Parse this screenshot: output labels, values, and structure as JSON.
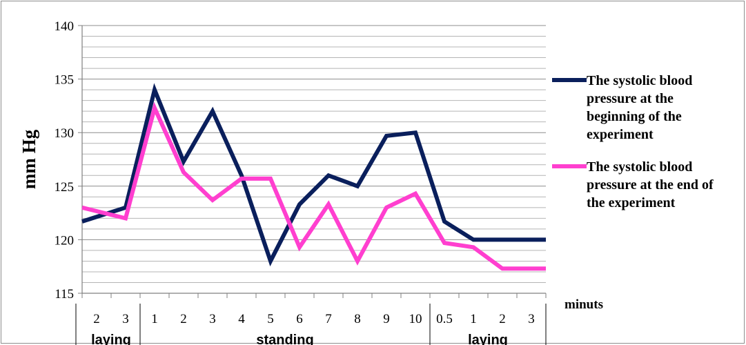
{
  "chart_data": {
    "type": "line",
    "title": "",
    "ylabel": "mm Hg",
    "xlabel": "minuts",
    "ylim": [
      115,
      140
    ],
    "yticks": [
      115,
      120,
      125,
      130,
      135,
      140
    ],
    "grid": "horizontal minor lines every 1 mm Hg",
    "categories": [
      "2",
      "3",
      "1",
      "2",
      "3",
      "4",
      "5",
      "6",
      "7",
      "8",
      "9",
      "10",
      "0.5",
      "1",
      "2",
      "3"
    ],
    "groups": [
      {
        "label": "laying",
        "from": 0,
        "to": 1
      },
      {
        "label": "standing",
        "from": 2,
        "to": 11
      },
      {
        "label": "laying",
        "from": 12,
        "to": 15
      }
    ],
    "legend_position": "right",
    "series": [
      {
        "name": "The systolic blood pressure at the beginning of the experiment",
        "color": "#0a1f5c",
        "values": [
          121.7,
          123,
          134,
          127.3,
          132,
          126,
          118,
          123.3,
          126,
          125,
          129.7,
          130,
          121.7,
          120,
          120,
          120
        ]
      },
      {
        "name": "The systolic blood pressure at the end of the experiment",
        "color": "#ff3fcf",
        "values": [
          123,
          122,
          132.3,
          126.3,
          123.7,
          125.7,
          125.7,
          119.3,
          123.3,
          118,
          123,
          124.3,
          119.7,
          119.3,
          117.3,
          117.3
        ]
      }
    ]
  }
}
